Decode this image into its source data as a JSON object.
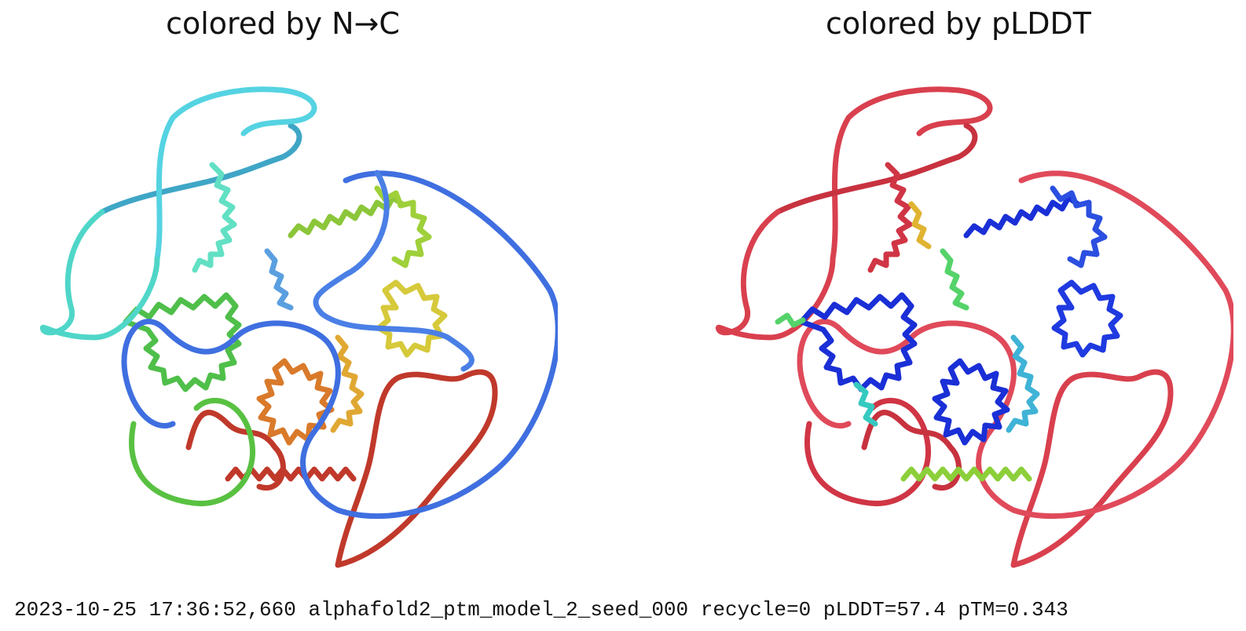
{
  "panels": [
    {
      "title": "colored by N→C",
      "coloring": "rainbow N-to-C"
    },
    {
      "title": "colored by pLDDT",
      "coloring": "confidence red-to-blue"
    }
  ],
  "log": {
    "line": "2023-10-25 17:36:52,660 alphafold2_ptm_model_2_seed_000 recycle=0 pLDDT=57.4 pTM=0.343"
  },
  "colors": {
    "n_terminal": "#c0392b",
    "orange": "#d97a2b",
    "yellow": "#d6c93a",
    "green": "#59c142",
    "teal": "#4fd6c8",
    "cyan": "#55d3e2",
    "blue": "#3f6fe0",
    "plddt_low": "#d9404e",
    "plddt_high": "#1a2fd6"
  }
}
